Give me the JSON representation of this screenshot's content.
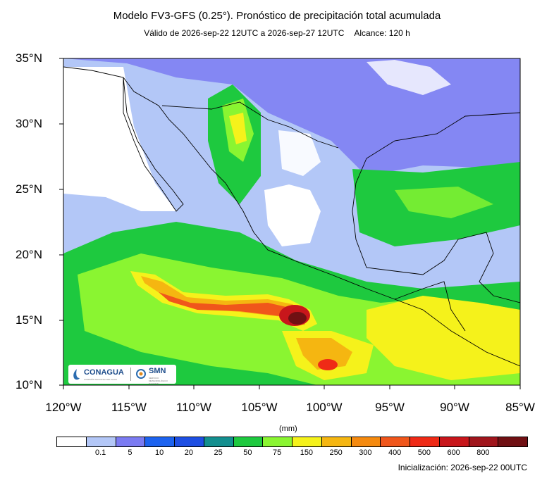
{
  "header": {
    "title": "Modelo FV3-GFS (0.25°). Pronóstico de precipitación total acumulada",
    "valid": "Válido de 2026-sep-22 12UTC a 2026-sep-27 12UTC",
    "range": "Alcance: 120 h"
  },
  "axes": {
    "lat_labels": [
      "35°N",
      "30°N",
      "25°N",
      "20°N",
      "15°N",
      "10°N"
    ],
    "lon_labels": [
      "120°W",
      "115°W",
      "110°W",
      "105°W",
      "100°W",
      "95°W",
      "90°W",
      "85°W"
    ]
  },
  "colorbar": {
    "units": "(mm)",
    "colors": [
      "#ffffff",
      "#b3c7f7",
      "#7b7bf2",
      "#1d63ef",
      "#1e4fe3",
      "#138f8f",
      "#1ec93f",
      "#8af531",
      "#f5f21b",
      "#f5b611",
      "#f58a0f",
      "#f0561b",
      "#ef2a16",
      "#c8161b",
      "#a0151c",
      "#701013"
    ],
    "ticks": [
      "0.1",
      "5",
      "10",
      "20",
      "25",
      "50",
      "75",
      "150",
      "250",
      "300",
      "400",
      "500",
      "600",
      "800"
    ]
  },
  "logos": {
    "conagua": "CONAGUA",
    "conagua_sub": "COMISIÓN NACIONAL DEL AGUA",
    "smn": "SMN",
    "smn_sub": "SERVICIO METEOROLÓGICO NACIONAL"
  },
  "footer": {
    "init": "Inicialización: 2026-sep-22 00UTC"
  }
}
